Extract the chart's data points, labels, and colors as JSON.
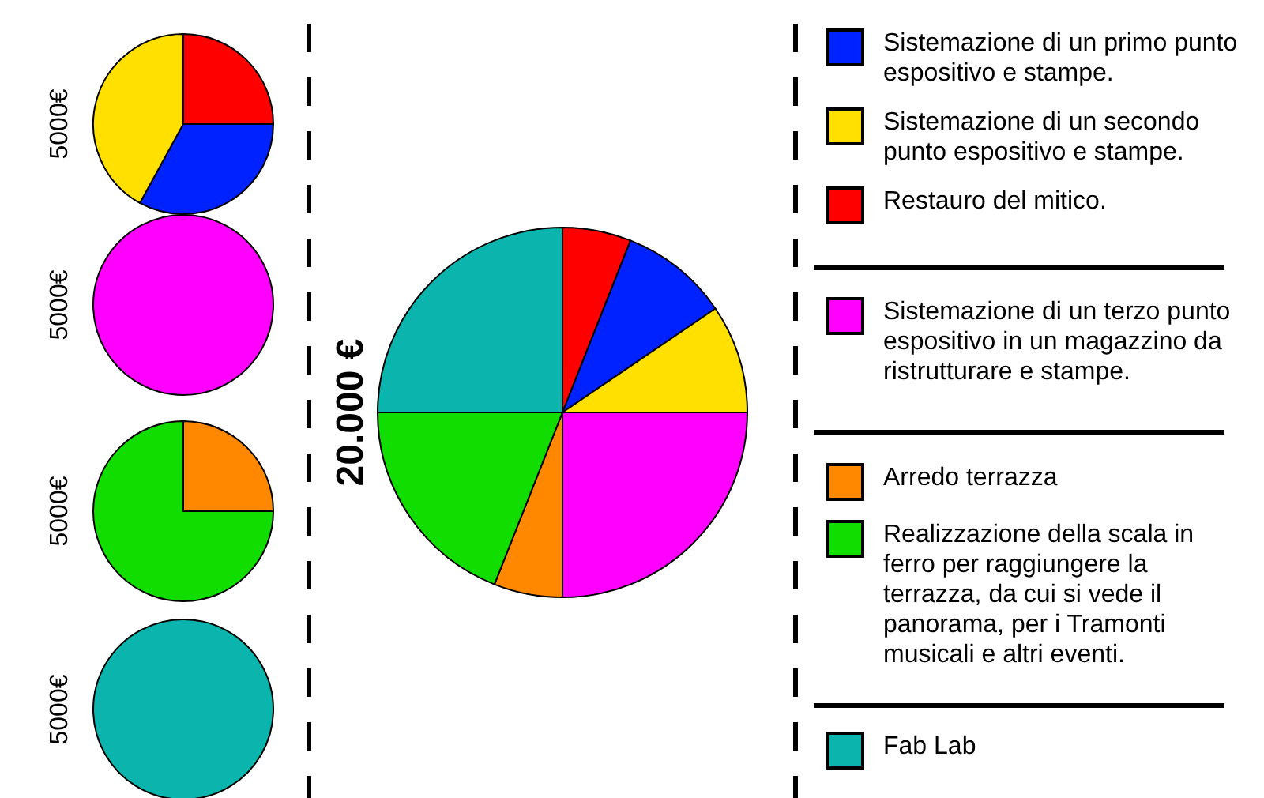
{
  "chart_data": [
    {
      "type": "pie",
      "ylabel": "5000€",
      "legend": "right",
      "categories": [
        "Sistemazione di un primo punto espositivo e stampe.",
        "Sistemazione di un secondo punto espositivo e stampe.",
        "Restauro del mitico."
      ],
      "values": [
        33,
        42,
        25
      ],
      "colors": [
        "#0022ff",
        "#ffe000",
        "#ff0000"
      ]
    },
    {
      "type": "pie",
      "ylabel": "5000€",
      "legend": "right",
      "categories": [
        "Sistemazione di un terzo punto espositivo in un magazzino da ristrutturare e stampe."
      ],
      "values": [
        100
      ],
      "colors": [
        "#ff00ff"
      ]
    },
    {
      "type": "pie",
      "ylabel": "5000€",
      "legend": "right",
      "categories": [
        "Arredo terrazza",
        "Realizzazione della scala in ferro per raggiungere la terrazza, da cui si vede il panorama, per i Tramonti musicali e altri eventi."
      ],
      "values": [
        25,
        75
      ],
      "colors": [
        "#ff8800",
        "#11dd00"
      ]
    },
    {
      "type": "pie",
      "ylabel": "5000€",
      "legend": "right",
      "categories": [
        "Fab Lab"
      ],
      "values": [
        100
      ],
      "colors": [
        "#0bb5ad"
      ]
    },
    {
      "type": "pie",
      "ylabel": "20.000 €",
      "categories": [
        null,
        null,
        null,
        null,
        null,
        null,
        null
      ],
      "values": [
        6,
        9.5,
        9.5,
        25,
        6,
        19,
        25
      ],
      "colors": [
        "#ff0000",
        "#0022ff",
        "#ffe000",
        "#ff00ff",
        "#ff8800",
        "#11dd00",
        "#0bb5ad"
      ]
    }
  ]
}
